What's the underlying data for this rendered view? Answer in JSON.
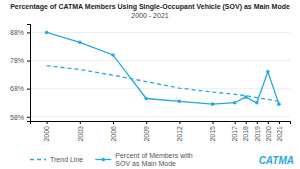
{
  "chart_data": {
    "type": "line",
    "title": "Percentage of CATMA Members Using Single-Occupant Vehicle (SOV) as Main Mode",
    "subtitle": "2000 - 2021",
    "x": [
      2000,
      2003,
      2006,
      2009,
      2012,
      2015,
      2017,
      2018,
      2019,
      2020,
      2021
    ],
    "series": [
      {
        "name": "Trend Line",
        "color": "#29a8e0",
        "line_style": "dashed",
        "values": [
          0.762,
          0.748,
          0.728,
          0.705,
          0.682,
          0.668,
          0.66,
          0.655,
          0.648,
          0.642,
          0.635
        ]
      },
      {
        "name": "Percent of Members with\nSOV as Main Mode",
        "color": "#29a8e0",
        "line_style": "solid",
        "marker": "circle",
        "values": [
          0.88,
          0.845,
          0.8,
          0.645,
          0.635,
          0.625,
          0.63,
          0.65,
          0.63,
          0.74,
          0.625
        ]
      }
    ],
    "xlim": [
      1998.5,
      2022
    ],
    "xticks": [
      2000,
      2003,
      2006,
      2009,
      2012,
      2015,
      2017,
      2018,
      2019,
      2020,
      2021
    ],
    "ylim": [
      0.565,
      0.91
    ],
    "yticks": [
      {
        "value": 0.58,
        "label": "58%"
      },
      {
        "value": 0.68,
        "label": "68%"
      },
      {
        "value": 0.78,
        "label": "78%"
      },
      {
        "value": 0.88,
        "label": "88%"
      }
    ],
    "grid": true,
    "legend": "bottom",
    "annotations": [
      {
        "text": "CATMA",
        "color": "#2aa8dc"
      }
    ]
  }
}
